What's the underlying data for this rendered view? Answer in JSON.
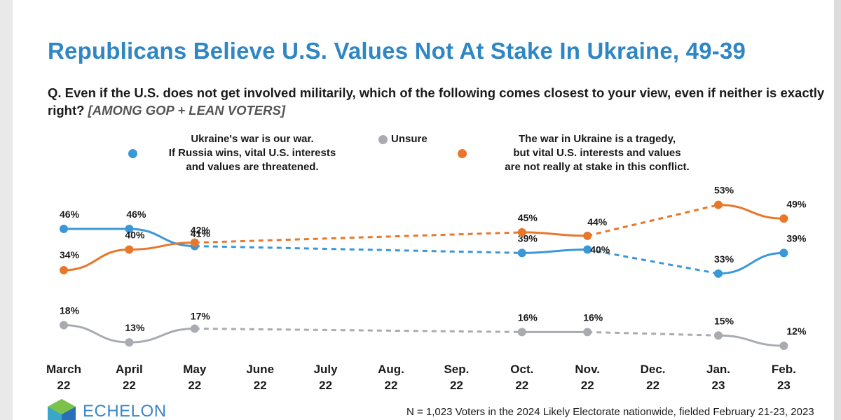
{
  "chart_data": {
    "type": "line",
    "title": "Republicans Believe U.S. Values Not At Stake In Ukraine, 49-39",
    "subtitle": "Q. Even if the U.S. does not get involved militarily, which of the following comes closest to your view, even if neither is exactly right?",
    "subtitle_tag": "[AMONG GOP + LEAN VOTERS]",
    "categories": [
      [
        "March",
        "22"
      ],
      [
        "April",
        "22"
      ],
      [
        "May",
        "22"
      ],
      [
        "June",
        "22"
      ],
      [
        "July",
        "22"
      ],
      [
        "Aug.",
        "22"
      ],
      [
        "Sep.",
        "22"
      ],
      [
        "Oct.",
        "22"
      ],
      [
        "Nov.",
        "22"
      ],
      [
        "Dec.",
        "22"
      ],
      [
        "Jan.",
        "23"
      ],
      [
        "Feb.",
        "23"
      ]
    ],
    "ylim": [
      0,
      60
    ],
    "grid": false,
    "legend_position": "top",
    "series": [
      {
        "name": "Ukraine's war is our war. If Russia wins, vital U.S. interests and values are threatened.",
        "legend_lines": [
          "Ukraine's war is our war.",
          "If Russia wins, vital U.S. interests",
          "and values are threatened."
        ],
        "color": "#3a97d8",
        "values": [
          46,
          46,
          41,
          null,
          null,
          null,
          null,
          39,
          40,
          null,
          33,
          39
        ],
        "labels": [
          "46%",
          "46%",
          "41%",
          null,
          null,
          null,
          null,
          "39%",
          "40%",
          null,
          "33%",
          "39%"
        ]
      },
      {
        "name": "Unsure",
        "legend_lines": [
          "Unsure"
        ],
        "color": "#a8acb1",
        "values": [
          18,
          13,
          17,
          null,
          null,
          null,
          null,
          16,
          16,
          null,
          15,
          12
        ],
        "labels": [
          "18%",
          "13%",
          "17%",
          null,
          null,
          null,
          null,
          "16%",
          "16%",
          null,
          "15%",
          "12%"
        ]
      },
      {
        "name": "The war in Ukraine is a tragedy, but vital U.S. interests and values are not really at stake in this conflict.",
        "legend_lines": [
          "The war in Ukraine is a tragedy,",
          "but vital U.S. interests and values",
          "are not really at stake in this conflict."
        ],
        "color": "#e8772b",
        "values": [
          34,
          40,
          42,
          null,
          null,
          null,
          null,
          45,
          44,
          null,
          53,
          49
        ],
        "labels": [
          "34%",
          "40%",
          "42%",
          null,
          null,
          null,
          null,
          "45%",
          "44%",
          null,
          "53%",
          "49%"
        ]
      }
    ],
    "footnote": "N = 1,023 Voters in the 2024 Likely Electorate nationwide, fielded February 21-23, 2023"
  },
  "logo": {
    "text": "ECHELON"
  }
}
